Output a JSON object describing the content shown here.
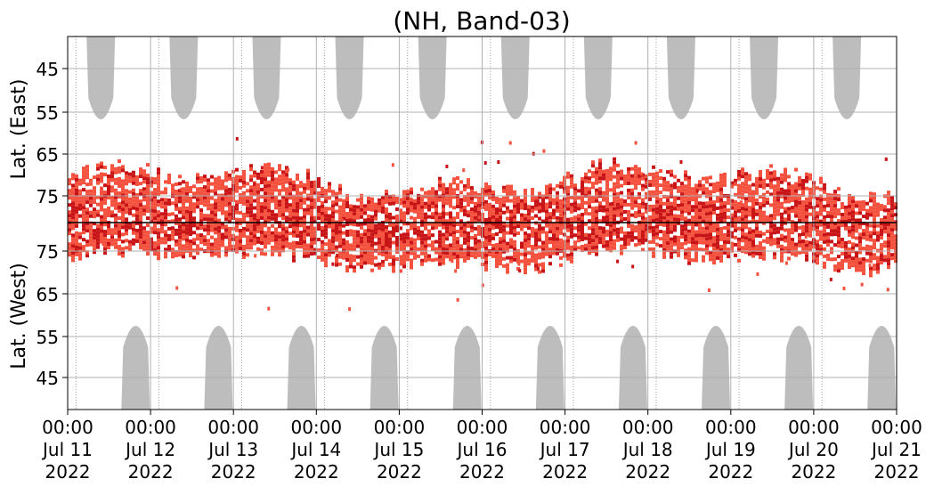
{
  "chart_data": {
    "type": "heatmap",
    "title": "(NH, Band-03)",
    "ylabel_top": "Lat. (East)",
    "ylabel_bottom": "Lat. (West)",
    "y_ticks_top": [
      "45",
      "55",
      "65",
      "75"
    ],
    "y_ticks_bottom": [
      "75",
      "65",
      "55",
      "45"
    ],
    "x_ticks": [
      {
        "time": "00:00",
        "date": "Jul 11",
        "year": "2022"
      },
      {
        "time": "00:00",
        "date": "Jul 12",
        "year": "2022"
      },
      {
        "time": "00:00",
        "date": "Jul 13",
        "year": "2022"
      },
      {
        "time": "00:00",
        "date": "Jul 14",
        "year": "2022"
      },
      {
        "time": "00:00",
        "date": "Jul 15",
        "year": "2022"
      },
      {
        "time": "00:00",
        "date": "Jul 16",
        "year": "2022"
      },
      {
        "time": "00:00",
        "date": "Jul 17",
        "year": "2022"
      },
      {
        "time": "00:00",
        "date": "Jul 18",
        "year": "2022"
      },
      {
        "time": "00:00",
        "date": "Jul 19",
        "year": "2022"
      },
      {
        "time": "00:00",
        "date": "Jul 20",
        "year": "2022"
      },
      {
        "time": "00:00",
        "date": "Jul 21",
        "year": "2022"
      }
    ],
    "x_range": [
      "2022-07-11 00:00",
      "2022-07-21 00:00"
    ],
    "grid": true,
    "colors": {
      "activity_light": "#f4513e",
      "activity_dark": "#c81416",
      "no_data_gray": "#bdbdbd",
      "grid": "#b0b0b0",
      "center_line": "#000000"
    },
    "east_gray_bands": [
      {
        "center_day": 0.4,
        "top_lat": 60.0
      },
      {
        "center_day": 1.4,
        "top_lat": 60.0
      },
      {
        "center_day": 2.4,
        "top_lat": 60.0
      },
      {
        "center_day": 3.4,
        "top_lat": 60.0
      },
      {
        "center_day": 4.4,
        "top_lat": 60.0
      },
      {
        "center_day": 5.4,
        "top_lat": 60.0
      },
      {
        "center_day": 6.4,
        "top_lat": 60.0
      },
      {
        "center_day": 7.4,
        "top_lat": 60.0
      },
      {
        "center_day": 8.4,
        "top_lat": 60.0
      },
      {
        "center_day": 9.4,
        "top_lat": 60.0
      }
    ],
    "west_gray_bands": [
      {
        "center_day": 0.82,
        "top_lat": 60.0
      },
      {
        "center_day": 1.82,
        "top_lat": 60.0
      },
      {
        "center_day": 2.82,
        "top_lat": 60.0
      },
      {
        "center_day": 3.82,
        "top_lat": 60.0
      },
      {
        "center_day": 4.82,
        "top_lat": 60.0
      },
      {
        "center_day": 5.82,
        "top_lat": 60.0
      },
      {
        "center_day": 6.82,
        "top_lat": 60.0
      },
      {
        "center_day": 7.82,
        "top_lat": 60.0
      },
      {
        "center_day": 8.82,
        "top_lat": 60.0
      },
      {
        "center_day": 9.82,
        "top_lat": 60.0
      }
    ]
  }
}
